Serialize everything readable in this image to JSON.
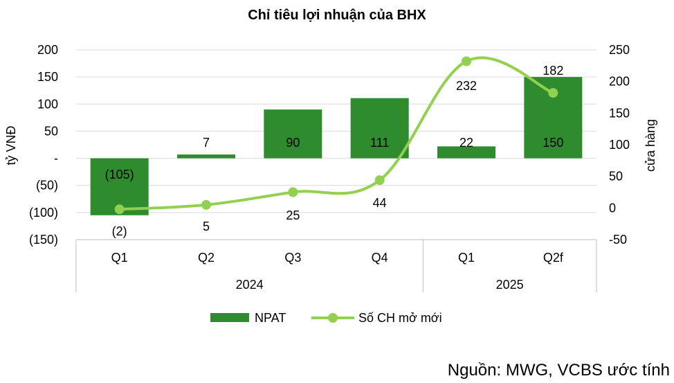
{
  "chart_data": {
    "type": "bar+line",
    "title": "Chỉ tiêu lợi nhuận của BHX",
    "categories": [
      "Q1",
      "Q2",
      "Q3",
      "Q4",
      "Q1",
      "Q2f"
    ],
    "groups": [
      {
        "label": "2024",
        "span": [
          0,
          3
        ]
      },
      {
        "label": "2025",
        "span": [
          4,
          5
        ]
      }
    ],
    "series": [
      {
        "name": "NPAT",
        "type": "bar",
        "axis": "left",
        "values": [
          -105,
          7,
          90,
          111,
          22,
          150
        ],
        "labels": [
          "(105)",
          "7",
          "90",
          "111",
          "22",
          "150"
        ],
        "color": "#2e8b2e"
      },
      {
        "name": "Số CH mở mới",
        "type": "line",
        "axis": "right",
        "values": [
          -2,
          5,
          25,
          44,
          232,
          182
        ],
        "labels": [
          "(2)",
          "5",
          "25",
          "44",
          "232",
          "182"
        ],
        "color": "#92d050"
      }
    ],
    "y_left": {
      "label": "tỷ VNĐ",
      "range": [
        -150,
        200
      ],
      "ticks": [
        200,
        150,
        100,
        50,
        0,
        -50,
        -100,
        -150
      ],
      "tick_labels": [
        "200",
        "150",
        "100",
        "50",
        "-",
        "(50)",
        "(100)",
        "(150)"
      ]
    },
    "y_right": {
      "label": "cửa hàng",
      "range": [
        -50,
        250
      ],
      "ticks": [
        250,
        200,
        150,
        100,
        50,
        0,
        -50
      ],
      "tick_labels": [
        "250",
        "200",
        "150",
        "100",
        "50",
        "0",
        "-50"
      ]
    },
    "grid": true,
    "legend_position": "bottom"
  },
  "source": "Nguồn: MWG, VCBS ước tính"
}
